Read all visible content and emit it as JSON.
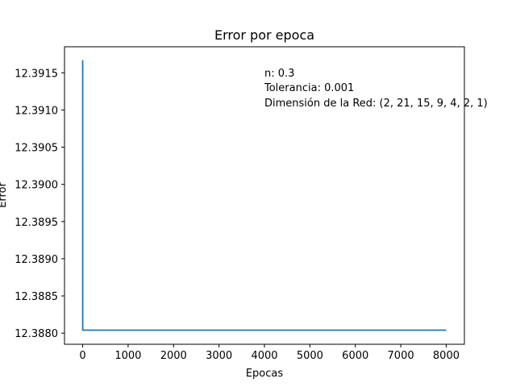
{
  "chart_data": {
    "type": "line",
    "title": "Error por epoca",
    "xlabel": "Epocas",
    "ylabel": "Error",
    "xlim": [
      -400,
      8400
    ],
    "ylim": [
      12.38785,
      12.39185
    ],
    "xticks": [
      "0",
      "1000",
      "2000",
      "3000",
      "4000",
      "5000",
      "6000",
      "7000",
      "8000"
    ],
    "yticks": [
      "12.3880",
      "12.3885",
      "12.3890",
      "12.3895",
      "12.3900",
      "12.3905",
      "12.3910",
      "12.3915"
    ],
    "grid": false,
    "legend": null,
    "series_color": "#1f77b4",
    "series": [
      {
        "x": [
          0,
          1,
          2,
          8000
        ],
        "y": [
          12.39167,
          12.38804,
          12.38804,
          12.38804
        ]
      }
    ],
    "annotations": [
      "n: 0.3",
      "Tolerancia: 0.001",
      "Dimensión de la Red: (2, 21, 15, 9, 4, 2, 1)"
    ]
  }
}
